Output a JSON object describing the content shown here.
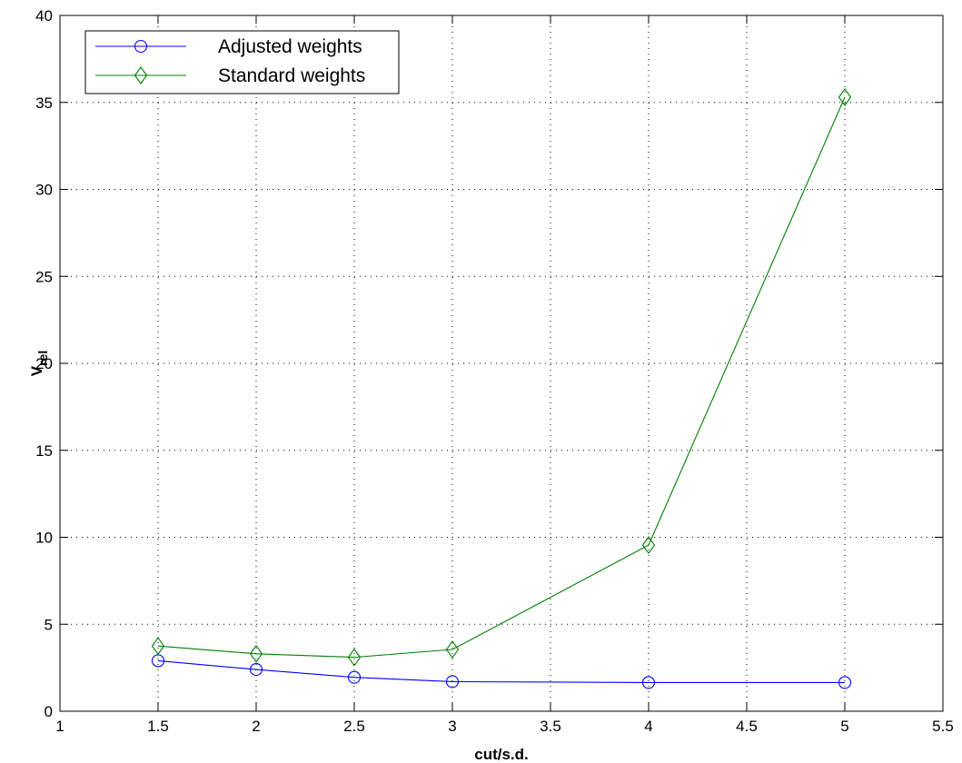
{
  "chart_data": {
    "type": "line",
    "title": "",
    "xlabel": "cut/s.d.",
    "ylabel_main": "V",
    "ylabel_sub": "rel",
    "xlim": [
      1,
      5.5
    ],
    "ylim": [
      0,
      40
    ],
    "xticks": [
      1,
      1.5,
      2,
      2.5,
      3,
      3.5,
      4,
      4.5,
      5,
      5.5
    ],
    "xtick_labels": [
      "1",
      "1.5",
      "2",
      "2.5",
      "3",
      "3.5",
      "4",
      "4.5",
      "5",
      "5.5"
    ],
    "yticks": [
      0,
      5,
      10,
      15,
      20,
      25,
      30,
      35,
      40
    ],
    "ytick_labels": [
      "0",
      "5",
      "10",
      "15",
      "20",
      "25",
      "30",
      "35",
      "40"
    ],
    "grid": true,
    "legend_position": "top-left",
    "series": [
      {
        "name": "Adjusted weights",
        "color": "#0000ff",
        "marker": "circle",
        "x": [
          1.5,
          2,
          2.5,
          3,
          4,
          5
        ],
        "y": [
          2.9,
          2.4,
          1.95,
          1.7,
          1.65,
          1.65
        ]
      },
      {
        "name": "Standard weights",
        "color": "#007f00",
        "marker": "diamond",
        "x": [
          1.5,
          2,
          2.5,
          3,
          4,
          5
        ],
        "y": [
          3.75,
          3.3,
          3.1,
          3.55,
          9.55,
          35.3
        ]
      }
    ]
  }
}
